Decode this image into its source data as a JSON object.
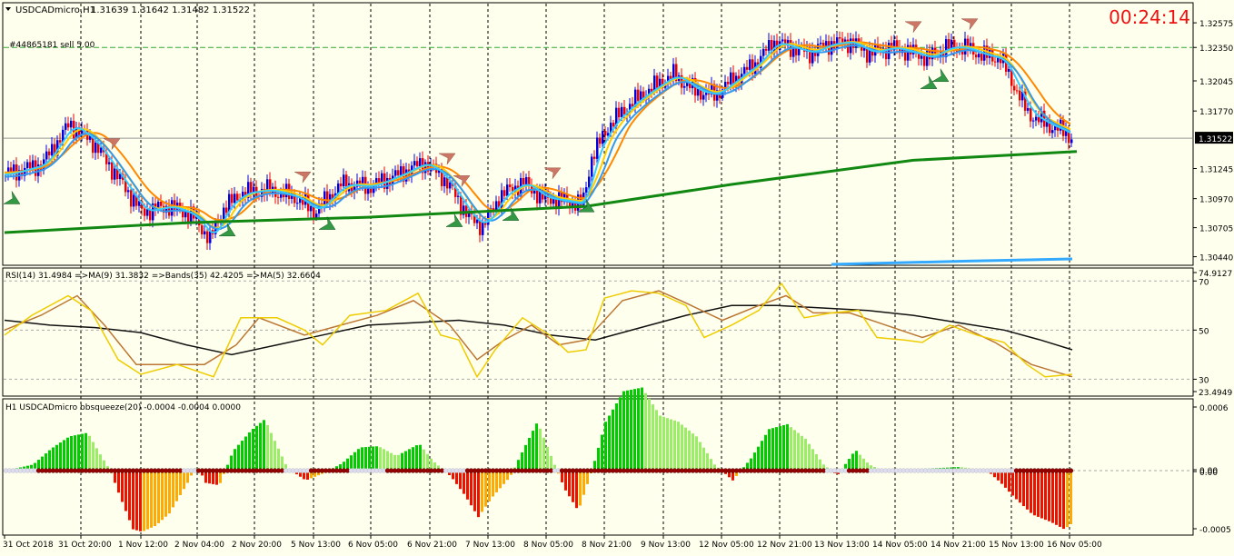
{
  "chart_data": [
    {
      "type": "candlestick",
      "header": {
        "symbol_label": "USDCADmicro,H1",
        "ohlc_label": "1.31639 1.31642 1.31482 1.31522"
      },
      "order_label": "#44865181 sell 5.00",
      "countdown": "00:24:14",
      "price_axis_ticks": [
        "1.32575",
        "1.32350",
        "1.32045",
        "1.31770",
        "1.31245",
        "1.30970",
        "1.30705",
        "1.30440"
      ],
      "current_price_label": "1.31522",
      "current_price": 1.31522,
      "order_price": 1.3235,
      "ylim": [
        1.3037,
        1.3275
      ],
      "colors": {
        "bull": "#0000dd",
        "bear": "#ee0000",
        "ma_fast": "#33ccff",
        "ma_slow": "#3399ee",
        "ma_orange": "#ff8800",
        "ma_yellow": "#ffcc00",
        "ma_long": "#118811",
        "bottom_line": "#33aaff"
      },
      "close_points": [
        [
          0,
          1.3119
        ],
        [
          40,
          1.3128
        ],
        [
          70,
          1.3165
        ],
        [
          95,
          1.315
        ],
        [
          125,
          1.3115
        ],
        [
          150,
          1.3085
        ],
        [
          180,
          1.309
        ],
        [
          205,
          1.3082
        ],
        [
          225,
          1.306
        ],
        [
          240,
          1.3088
        ],
        [
          260,
          1.3102
        ],
        [
          290,
          1.3105
        ],
        [
          320,
          1.3098
        ],
        [
          340,
          1.3085
        ],
        [
          370,
          1.311
        ],
        [
          400,
          1.3108
        ],
        [
          430,
          1.3118
        ],
        [
          460,
          1.313
        ],
        [
          480,
          1.3118
        ],
        [
          495,
          1.31
        ],
        [
          510,
          1.308
        ],
        [
          525,
          1.3072
        ],
        [
          545,
          1.31
        ],
        [
          570,
          1.3112
        ],
        [
          590,
          1.3098
        ],
        [
          615,
          1.3095
        ],
        [
          635,
          1.3092
        ],
        [
          645,
          1.3135
        ],
        [
          665,
          1.3165
        ],
        [
          690,
          1.3185
        ],
        [
          715,
          1.32
        ],
        [
          735,
          1.321
        ],
        [
          760,
          1.3195
        ],
        [
          780,
          1.3192
        ],
        [
          800,
          1.3205
        ],
        [
          825,
          1.322
        ],
        [
          845,
          1.324
        ],
        [
          865,
          1.3235
        ],
        [
          885,
          1.323
        ],
        [
          905,
          1.3238
        ],
        [
          930,
          1.324
        ],
        [
          950,
          1.323
        ],
        [
          975,
          1.3235
        ],
        [
          1000,
          1.323
        ],
        [
          1015,
          1.3225
        ],
        [
          1035,
          1.3235
        ],
        [
          1055,
          1.3235
        ],
        [
          1075,
          1.3228
        ],
        [
          1095,
          1.3225
        ],
        [
          1110,
          1.32
        ],
        [
          1125,
          1.3175
        ],
        [
          1145,
          1.3165
        ],
        [
          1165,
          1.3158
        ],
        [
          1175,
          1.3152
        ]
      ],
      "long_ma_points": [
        [
          0,
          1.3066
        ],
        [
          200,
          1.3075
        ],
        [
          400,
          1.308
        ],
        [
          640,
          1.309
        ],
        [
          800,
          1.311
        ],
        [
          1000,
          1.3132
        ],
        [
          1180,
          1.314
        ]
      ],
      "bottom_line_points": [
        [
          910,
          1.3037
        ],
        [
          1060,
          1.304
        ],
        [
          1175,
          1.3042
        ]
      ],
      "sell_arrow_x": [
        118,
        503,
        603,
        328,
        487,
        1000,
        1062
      ],
      "buy_arrow_x": [
        8,
        245,
        355,
        495,
        557,
        640,
        1017,
        1030
      ],
      "time_labels": [
        "31 Oct 2018",
        "31 Oct 20:00",
        "1 Nov 12:00",
        "2 Nov 04:00",
        "2 Nov 20:00",
        "5 Nov 13:00",
        "6 Nov 05:00",
        "6 Nov 21:00",
        "7 Nov 13:00",
        "8 Nov 05:00",
        "8 Nov 21:00",
        "9 Nov 13:00",
        "12 Nov 05:00",
        "12 Nov 21:00",
        "13 Nov 13:00",
        "14 Nov 05:00",
        "14 Nov 21:00",
        "15 Nov 13:00",
        "16 Nov 05:00"
      ]
    },
    {
      "type": "line",
      "label": "RSI(14) 31.4984  =>MA(9) 31.3832  =>Bands(35) 42.4205  =>MA(5) 32.6604",
      "ylim": [
        23.4949,
        74.9127
      ],
      "axis_ticks": [
        "74.9127",
        "70",
        "50",
        "30",
        "23.4949"
      ],
      "levels": [
        70,
        50,
        30
      ],
      "series": [
        {
          "color": "#eecc00",
          "points": [
            [
              0,
              48
            ],
            [
              30,
              56
            ],
            [
              70,
              64
            ],
            [
              95,
              58
            ],
            [
              125,
              38
            ],
            [
              150,
              32
            ],
            [
              190,
              36
            ],
            [
              230,
              31
            ],
            [
              260,
              55
            ],
            [
              300,
              55
            ],
            [
              330,
              50
            ],
            [
              350,
              44
            ],
            [
              380,
              56
            ],
            [
              420,
              58
            ],
            [
              455,
              65
            ],
            [
              480,
              48
            ],
            [
              500,
              46
            ],
            [
              520,
              31
            ],
            [
              540,
              42
            ],
            [
              570,
              55
            ],
            [
              600,
              48
            ],
            [
              620,
              41
            ],
            [
              640,
              42
            ],
            [
              660,
              63
            ],
            [
              690,
              66
            ],
            [
              720,
              65
            ],
            [
              750,
              60
            ],
            [
              770,
              47
            ],
            [
              800,
              52
            ],
            [
              830,
              58
            ],
            [
              855,
              69
            ],
            [
              880,
              55
            ],
            [
              910,
              57
            ],
            [
              940,
              58
            ],
            [
              960,
              47
            ],
            [
              990,
              46
            ],
            [
              1010,
              45
            ],
            [
              1040,
              52
            ],
            [
              1070,
              48
            ],
            [
              1100,
              45
            ],
            [
              1125,
              36
            ],
            [
              1145,
              31
            ],
            [
              1175,
              32
            ]
          ]
        },
        {
          "color": "#bb7733",
          "points": [
            [
              0,
              50
            ],
            [
              40,
              56
            ],
            [
              80,
              64
            ],
            [
              110,
              52
            ],
            [
              145,
              36
            ],
            [
              180,
              36
            ],
            [
              220,
              36
            ],
            [
              255,
              44
            ],
            [
              280,
              55
            ],
            [
              330,
              48
            ],
            [
              370,
              52
            ],
            [
              410,
              56
            ],
            [
              450,
              62
            ],
            [
              490,
              52
            ],
            [
              520,
              38
            ],
            [
              550,
              46
            ],
            [
              580,
              52
            ],
            [
              610,
              44
            ],
            [
              640,
              46
            ],
            [
              680,
              62
            ],
            [
              720,
              66
            ],
            [
              750,
              61
            ],
            [
              790,
              54
            ],
            [
              830,
              60
            ],
            [
              860,
              64
            ],
            [
              890,
              57
            ],
            [
              930,
              57
            ],
            [
              970,
              52
            ],
            [
              1010,
              47
            ],
            [
              1050,
              52
            ],
            [
              1090,
              45
            ],
            [
              1130,
              36
            ],
            [
              1175,
              31
            ]
          ]
        },
        {
          "color": "#111111",
          "points": [
            [
              0,
              54
            ],
            [
              50,
              52
            ],
            [
              100,
              51
            ],
            [
              150,
              49
            ],
            [
              200,
              44
            ],
            [
              250,
              40
            ],
            [
              300,
              44
            ],
            [
              350,
              48
            ],
            [
              400,
              52
            ],
            [
              450,
              53
            ],
            [
              500,
              54
            ],
            [
              550,
              52
            ],
            [
              600,
              48
            ],
            [
              650,
              46
            ],
            [
              700,
              51
            ],
            [
              750,
              56
            ],
            [
              800,
              60
            ],
            [
              850,
              60
            ],
            [
              900,
              59
            ],
            [
              950,
              58
            ],
            [
              1000,
              56
            ],
            [
              1050,
              53
            ],
            [
              1100,
              50
            ],
            [
              1140,
              46
            ],
            [
              1175,
              42
            ]
          ]
        }
      ]
    },
    {
      "type": "histogram",
      "label": "H1 USDCADmicro bbsqueeze(20) -0.0004 -0.0004 0.0000",
      "ylim": [
        -0.00052,
        0.00058
      ],
      "axis_ticks": [
        "0.0006",
        "0.00",
        "0.00",
        "-0.0005"
      ],
      "colors": {
        "pos_strong": "#00cc00",
        "pos_weak": "#99ee66",
        "neg_strong": "#ee1100",
        "neg_weak": "#ffaa00",
        "dot_squeeze": "#990000",
        "dot_free": "#ddddee"
      },
      "bars": [
        [
          0,
          0.0
        ],
        [
          30,
          5e-05
        ],
        [
          50,
          0.00018
        ],
        [
          70,
          0.00028
        ],
        [
          90,
          0.00031
        ],
        [
          105,
          0.00012
        ],
        [
          115,
          0.0
        ],
        [
          125,
          -0.0002
        ],
        [
          140,
          -0.00048
        ],
        [
          150,
          -0.0005
        ],
        [
          165,
          -0.00045
        ],
        [
          180,
          -0.00035
        ],
        [
          200,
          -0.0001
        ],
        [
          210,
          5e-05
        ],
        [
          220,
          -0.0001
        ],
        [
          235,
          -0.00012
        ],
        [
          250,
          0.00016
        ],
        [
          270,
          0.00033
        ],
        [
          285,
          0.00042
        ],
        [
          300,
          0.00018
        ],
        [
          310,
          2e-05
        ],
        [
          330,
          -8e-05
        ],
        [
          350,
          -2e-05
        ],
        [
          370,
          6e-05
        ],
        [
          390,
          0.00019
        ],
        [
          410,
          0.0002
        ],
        [
          430,
          0.00012
        ],
        [
          455,
          0.00022
        ],
        [
          470,
          8e-05
        ],
        [
          490,
          -5e-05
        ],
        [
          505,
          -0.0002
        ],
        [
          520,
          -0.00038
        ],
        [
          535,
          -0.00022
        ],
        [
          555,
          -5e-05
        ],
        [
          570,
          0.00018
        ],
        [
          585,
          0.0004
        ],
        [
          600,
          0.00012
        ],
        [
          615,
          -0.00015
        ],
        [
          630,
          -0.00033
        ],
        [
          645,
          0.0
        ],
        [
          660,
          0.0004
        ],
        [
          680,
          0.00065
        ],
        [
          700,
          0.00068
        ],
        [
          720,
          0.00045
        ],
        [
          740,
          0.0004
        ],
        [
          760,
          0.00028
        ],
        [
          780,
          5e-05
        ],
        [
          800,
          -8e-05
        ],
        [
          820,
          0.0001
        ],
        [
          840,
          0.00034
        ],
        [
          860,
          0.00038
        ],
        [
          880,
          0.00026
        ],
        [
          900,
          5e-05
        ],
        [
          915,
          -4e-05
        ],
        [
          935,
          0.00017
        ],
        [
          950,
          5e-05
        ],
        [
          965,
          0.0
        ],
        [
          1050,
          3e-05
        ],
        [
          1080,
          0.0
        ],
        [
          1095,
          -0.0001
        ],
        [
          1110,
          -0.00022
        ],
        [
          1130,
          -0.00036
        ],
        [
          1150,
          -0.00042
        ],
        [
          1165,
          -0.00048
        ],
        [
          1175,
          -0.00042
        ]
      ],
      "squeeze_segments": [
        [
          33,
          195
        ],
        [
          210,
          305
        ],
        [
          335,
          378
        ],
        [
          420,
          480
        ],
        [
          505,
          600
        ],
        [
          610,
          900
        ],
        [
          925,
          948
        ],
        [
          1110,
          1175
        ]
      ]
    }
  ]
}
